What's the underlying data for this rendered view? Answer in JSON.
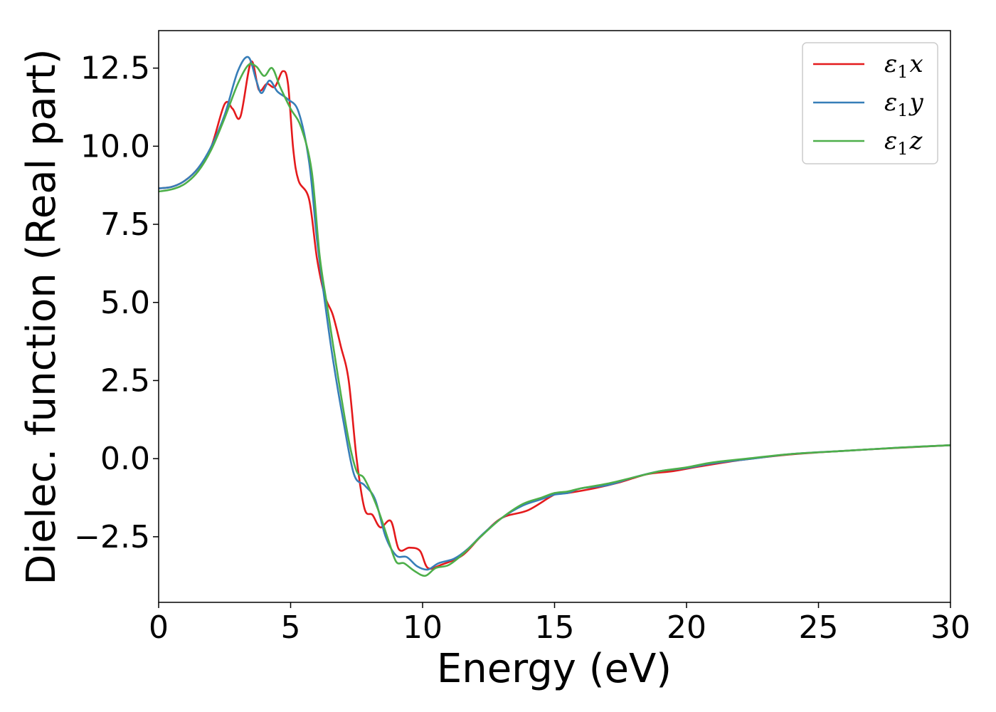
{
  "chart_data": {
    "type": "line",
    "title": "",
    "xlabel": "Energy (eV)",
    "ylabel": "Dielec. function (Real part)",
    "xlim": [
      0,
      30
    ],
    "ylim": [
      -4.6,
      13.7
    ],
    "xticks": [
      0,
      5,
      10,
      15,
      20,
      25,
      30
    ],
    "xtick_labels": [
      "0",
      "5",
      "10",
      "15",
      "20",
      "25",
      "30"
    ],
    "yticks": [
      -2.5,
      0.0,
      2.5,
      5.0,
      7.5,
      10.0,
      12.5
    ],
    "ytick_labels": [
      "−2.5",
      "0.0",
      "2.5",
      "5.0",
      "7.5",
      "10.0",
      "12.5"
    ],
    "grid": false,
    "legend_position": "top-right",
    "series": [
      {
        "name": "ε1x",
        "legend_base": "ε",
        "legend_sub": "1",
        "legend_var": "x",
        "color": "#e41a1c",
        "points": [
          [
            0,
            8.65
          ],
          [
            0.5,
            8.7
          ],
          [
            1.0,
            8.9
          ],
          [
            1.5,
            9.3
          ],
          [
            2.0,
            10.0
          ],
          [
            2.5,
            11.35
          ],
          [
            2.8,
            11.2
          ],
          [
            3.1,
            10.95
          ],
          [
            3.5,
            12.7
          ],
          [
            3.8,
            11.8
          ],
          [
            4.1,
            12.0
          ],
          [
            4.4,
            11.9
          ],
          [
            4.7,
            12.4
          ],
          [
            4.9,
            12.0
          ],
          [
            5.1,
            9.9
          ],
          [
            5.3,
            8.9
          ],
          [
            5.7,
            8.3
          ],
          [
            6.0,
            6.4
          ],
          [
            6.3,
            5.2
          ],
          [
            6.6,
            4.6
          ],
          [
            6.9,
            3.6
          ],
          [
            7.2,
            2.5
          ],
          [
            7.5,
            0.0
          ],
          [
            7.8,
            -1.6
          ],
          [
            8.1,
            -1.8
          ],
          [
            8.4,
            -2.2
          ],
          [
            8.8,
            -2.0
          ],
          [
            9.1,
            -2.9
          ],
          [
            9.5,
            -2.85
          ],
          [
            9.9,
            -2.95
          ],
          [
            10.2,
            -3.5
          ],
          [
            10.7,
            -3.4
          ],
          [
            11.5,
            -3.1
          ],
          [
            12.2,
            -2.5
          ],
          [
            13.0,
            -1.9
          ],
          [
            14.0,
            -1.65
          ],
          [
            15.0,
            -1.15
          ],
          [
            15.5,
            -1.1
          ],
          [
            16.5,
            -0.95
          ],
          [
            17.5,
            -0.75
          ],
          [
            18.5,
            -0.5
          ],
          [
            19.5,
            -0.4
          ],
          [
            20.5,
            -0.25
          ],
          [
            22.0,
            -0.05
          ],
          [
            23.5,
            0.1
          ],
          [
            25.0,
            0.2
          ],
          [
            27.0,
            0.3
          ],
          [
            30.0,
            0.43
          ]
        ]
      },
      {
        "name": "ε1y",
        "legend_base": "ε",
        "legend_sub": "1",
        "legend_var": "y",
        "color": "#377eb8",
        "points": [
          [
            0,
            8.65
          ],
          [
            0.5,
            8.7
          ],
          [
            1.0,
            8.9
          ],
          [
            1.5,
            9.3
          ],
          [
            2.0,
            10.0
          ],
          [
            2.5,
            11.0
          ],
          [
            3.0,
            12.4
          ],
          [
            3.4,
            12.85
          ],
          [
            3.7,
            12.1
          ],
          [
            3.9,
            11.7
          ],
          [
            4.2,
            12.1
          ],
          [
            4.5,
            11.75
          ],
          [
            4.9,
            11.5
          ],
          [
            5.3,
            11.1
          ],
          [
            5.7,
            9.5
          ],
          [
            6.0,
            7.0
          ],
          [
            6.3,
            5.0
          ],
          [
            6.6,
            3.2
          ],
          [
            7.0,
            1.2
          ],
          [
            7.4,
            -0.5
          ],
          [
            7.8,
            -0.85
          ],
          [
            8.2,
            -1.3
          ],
          [
            8.6,
            -2.5
          ],
          [
            9.0,
            -3.1
          ],
          [
            9.4,
            -3.15
          ],
          [
            9.8,
            -3.45
          ],
          [
            10.2,
            -3.55
          ],
          [
            10.6,
            -3.35
          ],
          [
            11.2,
            -3.2
          ],
          [
            11.7,
            -2.9
          ],
          [
            12.3,
            -2.4
          ],
          [
            13.0,
            -1.9
          ],
          [
            13.8,
            -1.5
          ],
          [
            14.5,
            -1.3
          ],
          [
            15.0,
            -1.15
          ],
          [
            15.5,
            -1.1
          ],
          [
            16.0,
            -0.95
          ],
          [
            17.0,
            -0.85
          ],
          [
            18.0,
            -0.6
          ],
          [
            19.0,
            -0.4
          ],
          [
            20.0,
            -0.3
          ],
          [
            21.0,
            -0.15
          ],
          [
            22.5,
            0.0
          ],
          [
            24.0,
            0.15
          ],
          [
            26.0,
            0.25
          ],
          [
            28.0,
            0.35
          ],
          [
            30.0,
            0.43
          ]
        ]
      },
      {
        "name": "ε1z",
        "legend_base": "ε",
        "legend_sub": "1",
        "legend_var": "z",
        "color": "#4daf4a",
        "points": [
          [
            0,
            8.55
          ],
          [
            0.5,
            8.62
          ],
          [
            1.0,
            8.8
          ],
          [
            1.5,
            9.2
          ],
          [
            2.0,
            9.9
          ],
          [
            2.5,
            10.9
          ],
          [
            3.0,
            12.0
          ],
          [
            3.4,
            12.6
          ],
          [
            3.7,
            12.55
          ],
          [
            4.0,
            12.25
          ],
          [
            4.3,
            12.5
          ],
          [
            4.6,
            11.9
          ],
          [
            5.0,
            11.2
          ],
          [
            5.4,
            10.6
          ],
          [
            5.8,
            9.2
          ],
          [
            6.1,
            6.5
          ],
          [
            6.4,
            4.8
          ],
          [
            6.8,
            2.6
          ],
          [
            7.2,
            0.6
          ],
          [
            7.5,
            -0.4
          ],
          [
            7.8,
            -0.65
          ],
          [
            8.3,
            -1.6
          ],
          [
            8.7,
            -2.6
          ],
          [
            9.0,
            -3.3
          ],
          [
            9.3,
            -3.35
          ],
          [
            9.7,
            -3.6
          ],
          [
            10.1,
            -3.75
          ],
          [
            10.5,
            -3.5
          ],
          [
            11.0,
            -3.4
          ],
          [
            11.6,
            -3.0
          ],
          [
            12.2,
            -2.5
          ],
          [
            13.0,
            -1.9
          ],
          [
            13.8,
            -1.45
          ],
          [
            14.5,
            -1.25
          ],
          [
            15.0,
            -1.1
          ],
          [
            15.5,
            -1.05
          ],
          [
            16.0,
            -0.95
          ],
          [
            17.0,
            -0.8
          ],
          [
            18.0,
            -0.6
          ],
          [
            19.0,
            -0.4
          ],
          [
            20.0,
            -0.28
          ],
          [
            21.0,
            -0.12
          ],
          [
            22.5,
            0.02
          ],
          [
            24.0,
            0.15
          ],
          [
            26.0,
            0.25
          ],
          [
            28.0,
            0.35
          ],
          [
            30.0,
            0.43
          ]
        ]
      }
    ]
  }
}
